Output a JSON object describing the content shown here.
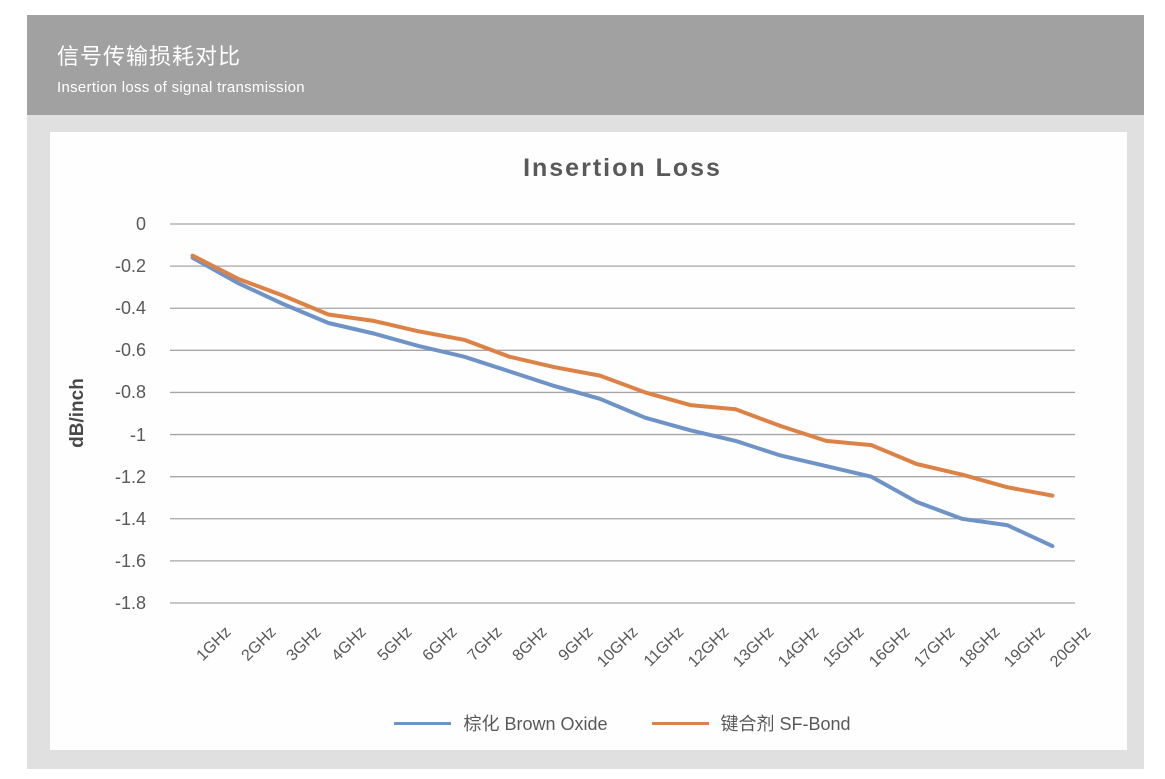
{
  "header": {
    "title": "信号传输损耗对比",
    "subtitle": "Insertion loss of signal transmission"
  },
  "chart_data": {
    "type": "line",
    "title": "Insertion Loss",
    "xlabel": "",
    "ylabel": "dB/inch",
    "ylim": [
      -1.8,
      0
    ],
    "y_tick_step": 0.2,
    "y_tick_labels": [
      "0",
      "-0.2",
      "-0.4",
      "-0.6",
      "-0.8",
      "-1",
      "-1.2",
      "-1.4",
      "-1.6",
      "-1.8"
    ],
    "grid": "horizontal",
    "legend_position": "bottom",
    "categories": [
      "1GHz",
      "2GHz",
      "3GHz",
      "4GHz",
      "5GHz",
      "6GHz",
      "7GHz",
      "8GHz",
      "9GHz",
      "10GHz",
      "11GHz",
      "12GHz",
      "13GHz",
      "14GHz",
      "15GHz",
      "16GHz",
      "17GHz",
      "18GHz",
      "19GHz",
      "20GHz"
    ],
    "series": [
      {
        "name": "棕化 Brown Oxide",
        "color": "#6e93c7",
        "values": [
          -0.16,
          -0.28,
          -0.38,
          -0.47,
          -0.52,
          -0.58,
          -0.63,
          -0.7,
          -0.77,
          -0.83,
          -0.92,
          -0.98,
          -1.03,
          -1.1,
          -1.15,
          -1.2,
          -1.32,
          -1.4,
          -1.43,
          -1.53
        ]
      },
      {
        "name": "键合剂  SF-Bond",
        "color": "#dd8246",
        "values": [
          -0.15,
          -0.26,
          -0.34,
          -0.43,
          -0.46,
          -0.51,
          -0.55,
          -0.63,
          -0.68,
          -0.72,
          -0.8,
          -0.86,
          -0.88,
          -0.96,
          -1.03,
          -1.05,
          -1.14,
          -1.19,
          -1.25,
          -1.29
        ]
      }
    ]
  },
  "colors": {
    "header_bg": "#a1a1a1",
    "panel_bg": "#e0e0e0",
    "card_bg": "#fefefe",
    "gridline": "#a6a6a6",
    "text": "#595959"
  }
}
